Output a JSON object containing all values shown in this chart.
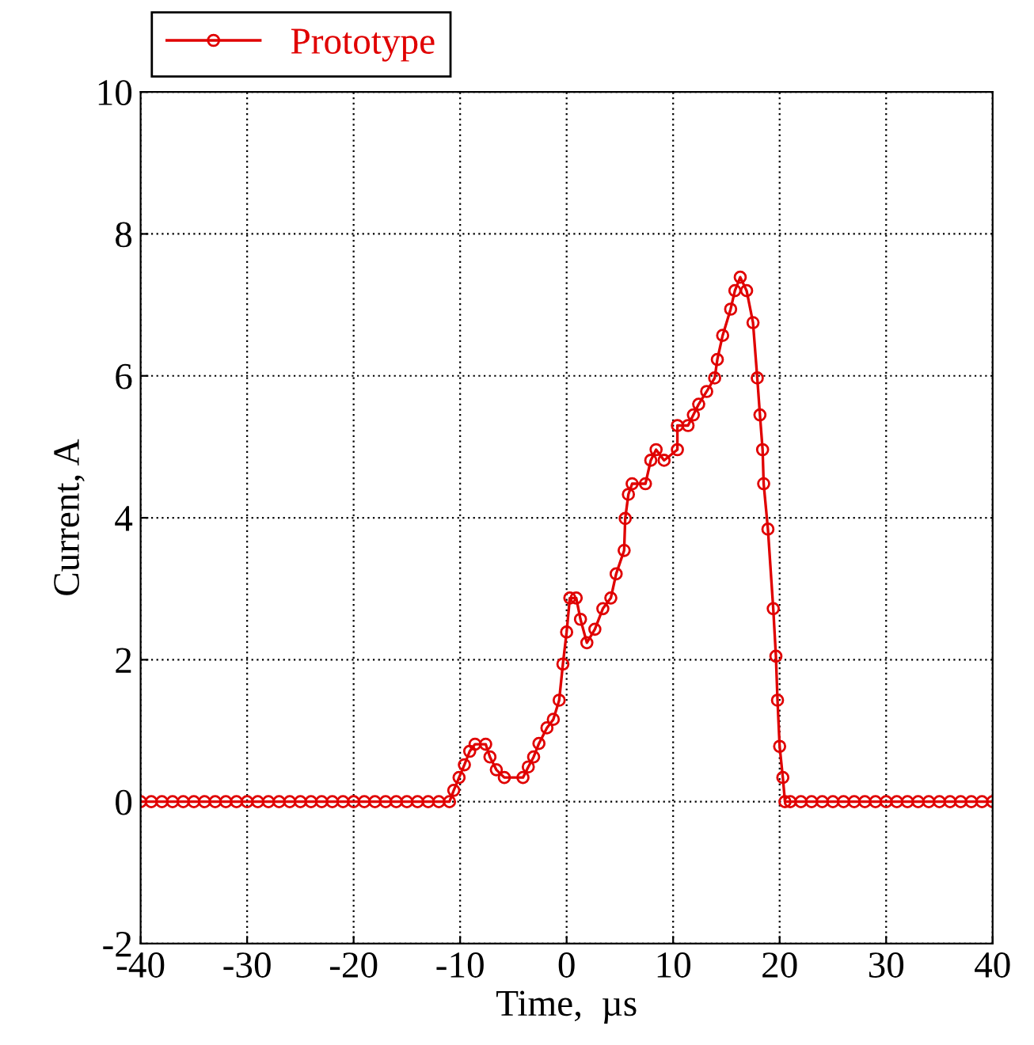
{
  "chart_data": {
    "type": "line",
    "xlabel": "Time,  µs",
    "ylabel": "Current, A",
    "xlim": [
      -40,
      40
    ],
    "ylim": [
      -2,
      10
    ],
    "xticks": [
      -40,
      -30,
      -20,
      -10,
      0,
      10,
      20,
      30,
      40
    ],
    "yticks": [
      -2,
      0,
      2,
      4,
      6,
      8,
      10
    ],
    "grid": true,
    "legend": "top left",
    "marker": "circle",
    "line_style": "solid",
    "series": [
      {
        "name": "Prototype",
        "color": "#e00000",
        "x": [
          -40,
          -39,
          -38,
          -37,
          -36,
          -35,
          -34,
          -33,
          -32,
          -31,
          -30,
          -29,
          -28,
          -27,
          -26,
          -25,
          -24,
          -23,
          -22,
          -21,
          -20,
          -19,
          -18,
          -17,
          -16,
          -15,
          -14,
          -13,
          -12,
          -11,
          -10.6,
          -10.1,
          -9.6,
          -9.1,
          -8.6,
          -7.6,
          -7.2,
          -6.6,
          -5.85,
          -4.1,
          -3.6,
          -3.1,
          -2.6,
          -1.85,
          -1.25,
          -0.7,
          -0.35,
          0,
          0.3,
          0.9,
          1.3,
          1.9,
          2.65,
          3.4,
          4.15,
          4.65,
          5.4,
          5.5,
          5.8,
          6.15,
          7.4,
          7.9,
          8.4,
          9.15,
          10.4,
          10.4,
          11.4,
          11.9,
          12.4,
          13.15,
          13.9,
          14.15,
          14.65,
          15.4,
          15.8,
          16.3,
          16.9,
          17.5,
          17.9,
          18.15,
          18.4,
          18.5,
          18.9,
          19.4,
          19.65,
          19.8,
          20.0,
          20.3,
          20.5,
          21,
          22,
          23,
          24,
          25,
          26,
          27,
          28,
          29,
          30,
          31,
          32,
          33,
          34,
          35,
          36,
          37,
          38,
          39,
          40
        ],
        "values": [
          0,
          0,
          0,
          0,
          0,
          0,
          0,
          0,
          0,
          0,
          0,
          0,
          0,
          0,
          0,
          0,
          0,
          0,
          0,
          0,
          0,
          0,
          0,
          0,
          0,
          0,
          0,
          0,
          0,
          0,
          0.16,
          0.34,
          0.52,
          0.71,
          0.81,
          0.81,
          0.63,
          0.45,
          0.34,
          0.34,
          0.49,
          0.63,
          0.82,
          1.04,
          1.16,
          1.43,
          1.94,
          2.39,
          2.87,
          2.87,
          2.57,
          2.24,
          2.43,
          2.72,
          2.87,
          3.21,
          3.54,
          3.99,
          4.33,
          4.48,
          4.48,
          4.81,
          4.96,
          4.81,
          4.96,
          5.3,
          5.3,
          5.45,
          5.6,
          5.78,
          5.97,
          6.23,
          6.57,
          6.94,
          7.2,
          7.39,
          7.2,
          6.75,
          5.97,
          5.45,
          4.96,
          4.48,
          3.84,
          2.72,
          2.05,
          1.43,
          0.78,
          0.34,
          0,
          0,
          0,
          0,
          0,
          0,
          0,
          0,
          0,
          0,
          0,
          0,
          0,
          0,
          0,
          0,
          0,
          0,
          0,
          0,
          0
        ]
      }
    ]
  }
}
